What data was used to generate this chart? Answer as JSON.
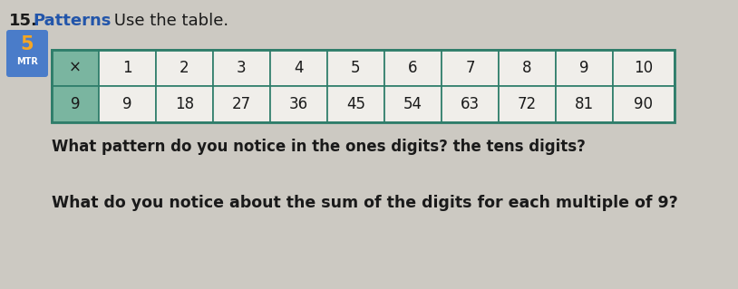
{
  "title_number": "15.",
  "title_bold": "Patterns",
  "title_rest": " Use the table.",
  "badge_number": "5",
  "badge_text": "MTR",
  "badge_bg": "#4a7cc9",
  "badge_number_bg": "#f5a623",
  "table_header_row": [
    "×",
    "1",
    "2",
    "3",
    "4",
    "5",
    "6",
    "7",
    "8",
    "9",
    "10"
  ],
  "table_data_row": [
    "9",
    "9",
    "18",
    "27",
    "36",
    "45",
    "54",
    "63",
    "72",
    "81",
    "90"
  ],
  "table_header_bg": "#7ab5a0",
  "table_cell_bg": "#f0eeea",
  "table_first_col_bg": "#7ab5a0",
  "table_border_color": "#2e7d6a",
  "question1": "What pattern do you notice in the ones digits? the tens digits?",
  "question2": "What do you notice about the sum of the digits for each multiple of 9?",
  "bg_color": "#ccc9c2",
  "text_color": "#1a1a1a",
  "title_color_normal": "#1a1a1a",
  "title_color_bold": "#2255aa"
}
